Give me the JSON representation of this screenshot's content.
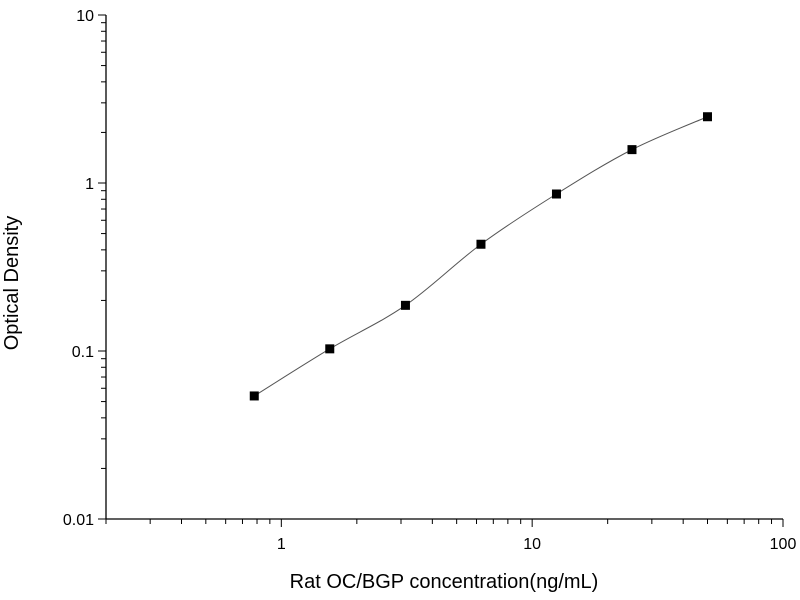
{
  "chart_data": {
    "type": "scatter",
    "xlabel": "Rat OC/BGP concentration(ng/mL)",
    "ylabel": "Optical Density",
    "x_scale": "log",
    "y_scale": "log",
    "xlim": [
      0.2,
      100
    ],
    "ylim": [
      0.01,
      10
    ],
    "x_ticks": [
      "1",
      "10",
      "100"
    ],
    "y_ticks": [
      "0.01",
      "0.1",
      "1",
      "10"
    ],
    "grid": false,
    "marker": "square",
    "fit_curve": true,
    "series": [
      {
        "x": [
          0.78,
          1.56,
          3.125,
          6.25,
          12.5,
          25,
          50
        ],
        "y": [
          0.054,
          0.103,
          0.187,
          0.432,
          0.86,
          1.58,
          2.48
        ]
      }
    ],
    "colors": {
      "axis": "#000000",
      "marker": "#000000",
      "curve": "#555555"
    }
  }
}
